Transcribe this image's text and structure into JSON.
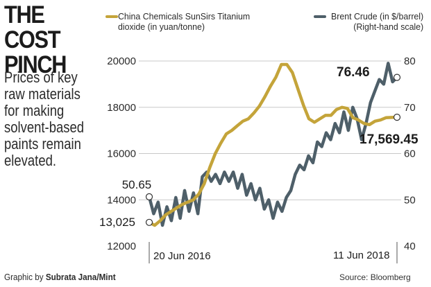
{
  "header": {
    "title": "THE COST\nPINCH",
    "subtitle": "Prices of key\nraw materials\nfor making\nsolvent-based\npaints remain\nelevated."
  },
  "footer": {
    "credit_prefix": "Graphic by ",
    "credit_name": "Subrata Jana/Mint",
    "source": "Source: Bloomberg"
  },
  "colors": {
    "titanium": "#c4a43a",
    "brent": "#4e5f69",
    "grid": "#c8c8c8",
    "marker_fill": "#ffffff"
  },
  "chart_data": {
    "type": "line",
    "title": "THE COST PINCH",
    "grid": true,
    "legend_position": "top",
    "x_labels": [
      "20 Jun 2016",
      "11 Jun 2018"
    ],
    "y_left": {
      "ticks": [
        12000,
        14000,
        16000,
        18000,
        20000
      ],
      "range": [
        12000,
        20000
      ]
    },
    "y_right": {
      "ticks": [
        40,
        50,
        60,
        70,
        80
      ],
      "range": [
        40,
        80
      ]
    },
    "series": [
      {
        "name": "China Chemicals SunSirs Titanium\ndioxide (in yuan/tonne)",
        "axis": "left",
        "start_label": "13,025",
        "end_label": "17,569.45",
        "values": [
          13025,
          12900,
          13100,
          13350,
          13500,
          13650,
          13800,
          13900,
          14000,
          14250,
          14700,
          15400,
          16000,
          16450,
          16850,
          17000,
          17200,
          17400,
          17500,
          17750,
          18050,
          18450,
          18900,
          19300,
          19850,
          19850,
          19500,
          18800,
          18100,
          17500,
          17350,
          17500,
          17650,
          17650,
          17900,
          18000,
          17950,
          17550,
          17450,
          17300,
          17250,
          17400,
          17450,
          17550,
          17560,
          17569.45
        ]
      },
      {
        "name": "Brent Crude (in $/barrel)\n(Right-hand scale)",
        "axis": "right",
        "start_label": "50.65",
        "end_label": "76.46",
        "values": [
          50.65,
          47.0,
          49.5,
          44.5,
          48.5,
          45.5,
          50.5,
          46.0,
          52.0,
          47.5,
          51.5,
          47.0,
          55.0,
          56.0,
          54.0,
          55.5,
          53.5,
          56.0,
          54.0,
          56.0,
          52.5,
          55.5,
          51.0,
          53.5,
          50.0,
          52.5,
          48.0,
          50.0,
          46.0,
          49.5,
          47.5,
          50.5,
          52.0,
          55.5,
          57.5,
          56.5,
          59.5,
          58.0,
          62.5,
          61.5,
          64.5,
          63.0,
          66.5,
          64.5,
          69.0,
          65.0,
          70.0,
          67.5,
          63.0,
          66.5,
          71.0,
          73.5,
          76.0,
          75.0,
          79.5,
          75.5,
          76.46
        ]
      }
    ]
  }
}
